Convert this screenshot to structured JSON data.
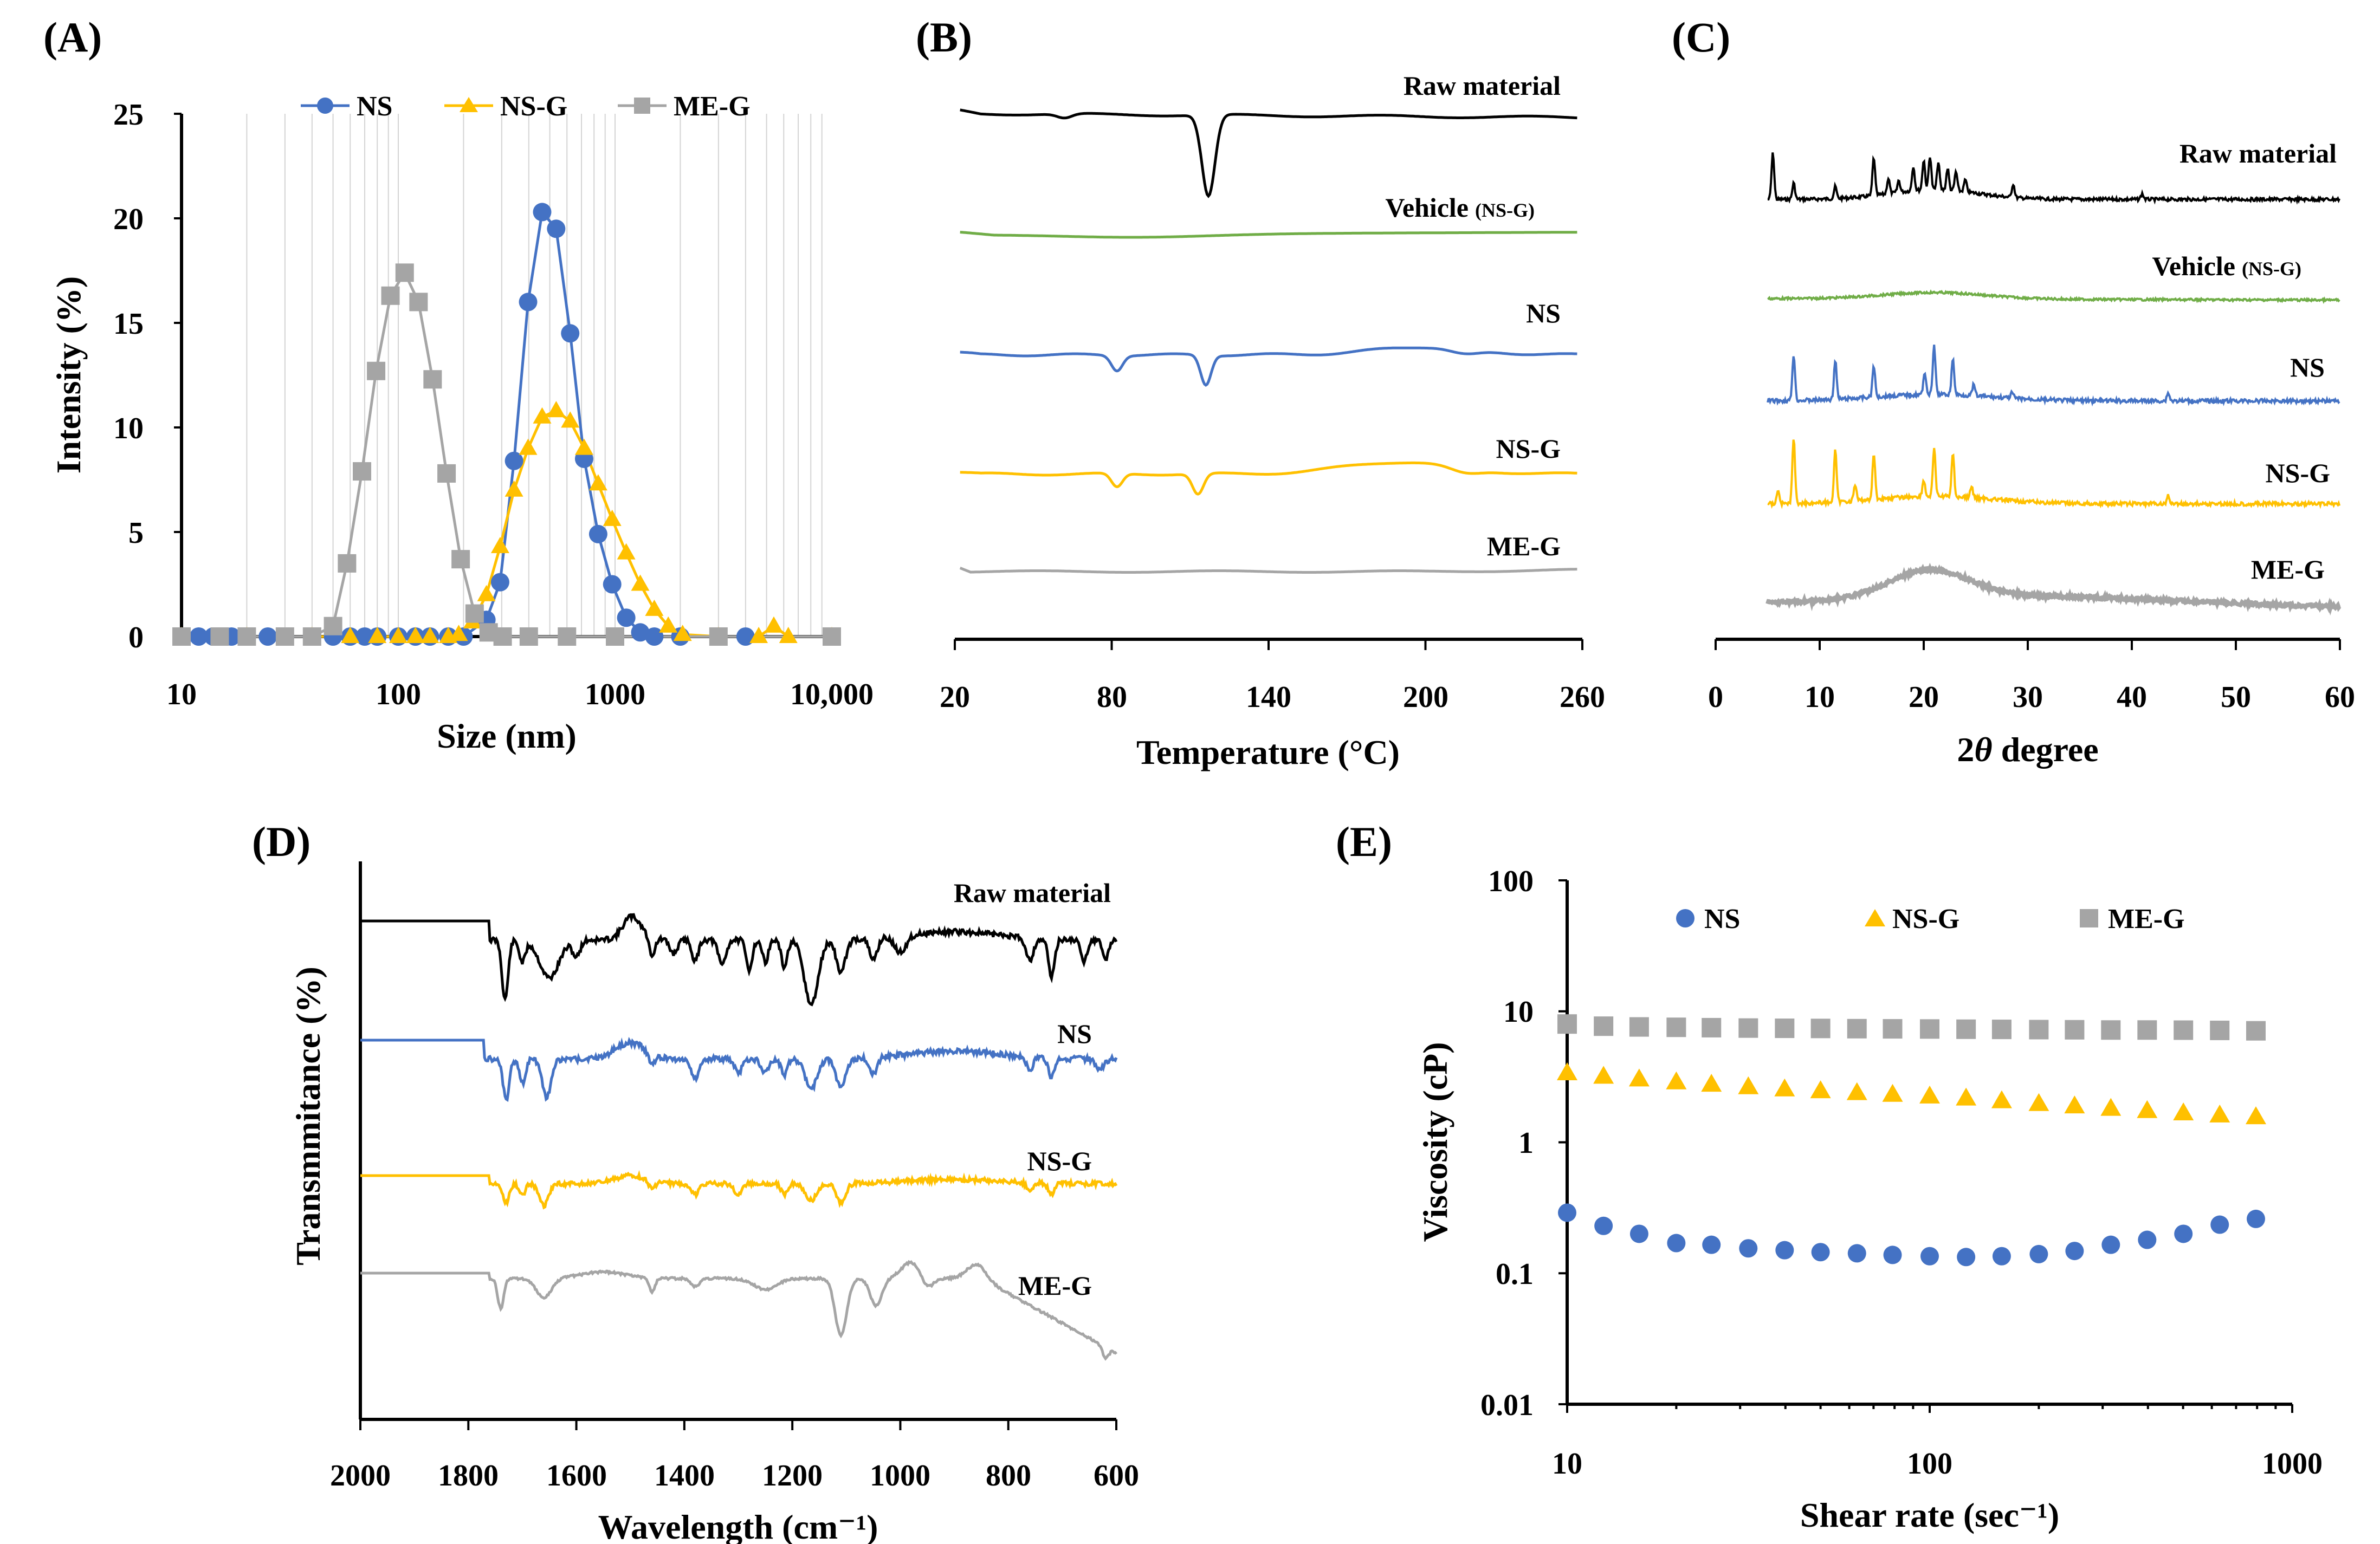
{
  "colors": {
    "ns": "#4472C4",
    "nsg": "#FFC000",
    "meg": "#A5A5A5",
    "raw": "#000000",
    "veh": "#70AD47"
  },
  "figure": {
    "labels": [
      "(A)",
      "(B)",
      "(C)",
      "(D)",
      "(E)"
    ]
  },
  "chart_data": [
    {
      "id": "A",
      "type": "line",
      "title": "(A)",
      "xlabel": "Size (nm)",
      "ylabel": "Intensity (%)",
      "xscale": "log",
      "xlim": [
        10,
        10000
      ],
      "ylim": [
        0,
        25
      ],
      "xticks": [
        "10",
        "100",
        "1000",
        "10,000"
      ],
      "yticks": [
        "0",
        "5",
        "10",
        "15",
        "20",
        "25"
      ],
      "legend": [
        "NS",
        "NS-G",
        "ME-G"
      ],
      "legend_position": "top",
      "series": [
        {
          "name": "NS",
          "x": [
            10,
            12,
            14,
            17,
            20,
            25,
            30,
            40,
            50,
            60,
            70,
            80,
            100,
            120,
            140,
            170,
            200,
            255,
            295,
            342,
            397,
            461,
            535,
            621,
            720,
            836,
            970,
            1126,
            1307,
            1517,
            2000,
            4000,
            10000
          ],
          "y": [
            0,
            0,
            0,
            0,
            0,
            0,
            0,
            0,
            0,
            0,
            0,
            0,
            0,
            0,
            0,
            0,
            0,
            0.8,
            2.6,
            8.4,
            16.0,
            20.3,
            19.5,
            14.5,
            8.5,
            4.9,
            2.5,
            0.9,
            0.2,
            0,
            0,
            0,
            0
          ]
        },
        {
          "name": "NS-G",
          "x": [
            10,
            20,
            40,
            60,
            80,
            100,
            120,
            140,
            170,
            190,
            220,
            255,
            295,
            342,
            397,
            461,
            535,
            621,
            720,
            836,
            970,
            1126,
            1307,
            1517,
            1760,
            2050,
            3000,
            4600,
            5400,
            6300,
            10000
          ],
          "y": [
            0,
            0,
            0,
            0,
            0,
            0,
            0,
            0,
            0,
            0.1,
            0.7,
            2.0,
            4.3,
            7.0,
            9.0,
            10.5,
            10.8,
            10.3,
            9.0,
            7.3,
            5.6,
            4.0,
            2.5,
            1.3,
            0.5,
            0.1,
            0,
            0,
            0.5,
            0,
            0
          ]
        },
        {
          "name": "ME-G",
          "x": [
            10,
            15,
            20,
            30,
            40,
            50,
            58,
            68,
            79,
            92,
            107,
            124,
            144,
            167,
            194,
            225,
            261,
            303,
            400,
            600,
            1000,
            3000,
            10000
          ],
          "y": [
            0,
            0,
            0,
            0,
            0,
            0.5,
            3.5,
            7.9,
            12.7,
            16.3,
            17.4,
            16.0,
            12.3,
            7.8,
            3.7,
            1.1,
            0.2,
            0,
            0,
            0,
            0,
            0,
            0
          ]
        }
      ]
    },
    {
      "id": "B",
      "type": "line",
      "title": "(B)",
      "xlabel": "Temperature (°C)",
      "xlim": [
        20,
        260
      ],
      "xticks": [
        "20",
        "80",
        "140",
        "200",
        "260"
      ],
      "series": [
        "Raw material",
        "Vehicle",
        "NS",
        "NS-G",
        "ME-G"
      ],
      "series_suffix": {
        "Vehicle": "(NS-G)"
      }
    },
    {
      "id": "C",
      "type": "line",
      "title": "(C)",
      "xlabel": "2θ degree",
      "xlabel_main": "2",
      "xlabel_theta": "θ",
      "xlabel_rest": " degree",
      "xlim": [
        0,
        60
      ],
      "xticks": [
        "0",
        "10",
        "20",
        "30",
        "40",
        "50",
        "60"
      ],
      "series": [
        "Raw material",
        "Vehicle",
        "NS",
        "NS-G",
        "ME-G"
      ],
      "series_suffix": {
        "Vehicle": "(NS-G)"
      }
    },
    {
      "id": "D",
      "type": "line",
      "title": "(D)",
      "xlabel": "Wavelength (cm⁻¹)",
      "ylabel": "Transmmitance (%)",
      "xlim": [
        2000,
        600
      ],
      "xticks": [
        "2000",
        "1800",
        "1600",
        "1400",
        "1200",
        "1000",
        "800",
        "600"
      ],
      "series": [
        "Raw material",
        "NS",
        "NS-G",
        "ME-G"
      ]
    },
    {
      "id": "E",
      "type": "scatter",
      "title": "(E)",
      "xlabel": "Shear rate (sec⁻¹)",
      "ylabel": "Viscosity (cP)",
      "xscale": "log",
      "yscale": "log",
      "xlim": [
        10,
        1000
      ],
      "ylim": [
        0.01,
        100
      ],
      "xticks": [
        "10",
        "100",
        "1000"
      ],
      "yticks": [
        "0.01",
        "0.1",
        "1",
        "10",
        "100"
      ],
      "legend": [
        "NS",
        "NS-G",
        "ME-G"
      ],
      "legend_position": "top",
      "x": [
        10,
        12.6,
        15.8,
        20,
        25,
        31.6,
        39.8,
        50,
        63,
        79,
        100,
        126,
        158,
        200,
        251,
        316,
        398,
        501,
        631,
        794
      ],
      "series": [
        {
          "name": "NS",
          "values": [
            0.29,
            0.23,
            0.2,
            0.17,
            0.165,
            0.155,
            0.15,
            0.145,
            0.142,
            0.138,
            0.135,
            0.133,
            0.135,
            0.14,
            0.148,
            0.165,
            0.18,
            0.2,
            0.235,
            0.26
          ]
        },
        {
          "name": "NS-G",
          "values": [
            3.4,
            3.2,
            3.05,
            2.9,
            2.78,
            2.66,
            2.56,
            2.48,
            2.4,
            2.33,
            2.26,
            2.18,
            2.08,
            1.98,
            1.9,
            1.82,
            1.75,
            1.68,
            1.62,
            1.57
          ]
        },
        {
          "name": "ME-G",
          "values": [
            8.0,
            7.7,
            7.6,
            7.55,
            7.5,
            7.45,
            7.42,
            7.4,
            7.37,
            7.35,
            7.33,
            7.3,
            7.28,
            7.25,
            7.23,
            7.2,
            7.2,
            7.18,
            7.15,
            7.1
          ]
        }
      ]
    }
  ]
}
